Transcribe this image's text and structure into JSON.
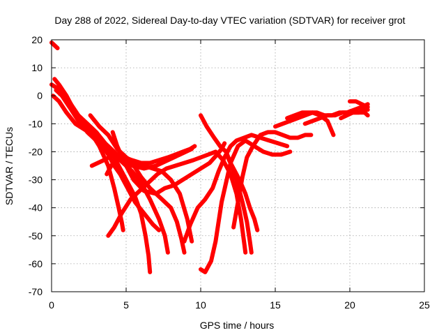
{
  "chart_data": {
    "type": "line",
    "title": "Day 288 of 2022, Sidereal Day-to-day VTEC variation (SDTVAR) for receiver grot",
    "xlabel": "GPS time / hours",
    "ylabel": "SDTVAR / TECUs",
    "xlim": [
      0,
      25
    ],
    "ylim": [
      -70,
      20
    ],
    "xticks": [
      "0",
      "5",
      "10",
      "15",
      "20",
      "25"
    ],
    "yticks": [
      "20",
      "10",
      "0",
      "-10",
      "-20",
      "-30",
      "-40",
      "-50",
      "-60",
      "-70"
    ],
    "grid": true,
    "marker": "plus",
    "color": "#ff0000",
    "series": [
      {
        "x": [
          0.0,
          0.4
        ],
        "y": [
          19,
          17
        ]
      },
      {
        "x": [
          0.0,
          0.3,
          0.7,
          1.2,
          1.8,
          2.5,
          3.2,
          3.8,
          4.2,
          4.5,
          4.7,
          4.8
        ],
        "y": [
          4,
          3,
          0,
          -4,
          -8,
          -12,
          -18,
          -25,
          -33,
          -40,
          -45,
          -48
        ]
      },
      {
        "x": [
          0.2,
          0.5,
          1.0,
          1.6,
          2.3,
          3.0,
          3.8,
          4.6,
          5.4,
          6.2,
          7.0,
          7.8,
          8.6,
          9.4
        ],
        "y": [
          6,
          4,
          0,
          -6,
          -10,
          -14,
          -18,
          -22,
          -25,
          -26,
          -25,
          -23,
          -21,
          -19
        ]
      },
      {
        "x": [
          0.3,
          0.7,
          1.2,
          1.8,
          2.4,
          3.0,
          3.6,
          4.2,
          4.8,
          5.4,
          6.0,
          6.6,
          7.2,
          7.6,
          7.8
        ],
        "y": [
          2,
          0,
          -4,
          -9,
          -13,
          -16,
          -18,
          -21,
          -24,
          -27,
          -31,
          -37,
          -44,
          -50,
          -56
        ]
      },
      {
        "x": [
          0.1,
          0.5,
          1.0,
          1.6,
          2.2,
          2.8,
          3.3,
          3.8,
          4.2,
          4.6,
          5.0,
          5.6,
          6.2,
          6.8,
          7.2
        ],
        "y": [
          0,
          -2,
          -6,
          -10,
          -12,
          -14,
          -17,
          -21,
          -25,
          -28,
          -32,
          -38,
          -42,
          -46,
          -48
        ]
      },
      {
        "x": [
          0.4,
          0.8,
          1.3,
          1.8,
          2.4,
          3.0,
          3.6,
          4.2,
          4.7,
          5.2,
          5.6,
          6.0,
          6.3,
          6.5,
          6.6
        ],
        "y": [
          3,
          1,
          -3,
          -7,
          -10,
          -13,
          -17,
          -22,
          -27,
          -32,
          -36,
          -42,
          -50,
          -57,
          -63
        ]
      },
      {
        "x": [
          2.6,
          3.2,
          3.8,
          4.4,
          5.0,
          5.6,
          6.2,
          6.8,
          7.4,
          8.0,
          8.6,
          9.1,
          9.4
        ],
        "y": [
          -7,
          -11,
          -14,
          -19,
          -22,
          -24,
          -25,
          -26,
          -27,
          -30,
          -35,
          -44,
          -52
        ]
      },
      {
        "x": [
          2.7,
          3.5,
          4.2,
          4.8,
          5.4,
          6.0,
          6.6,
          7.4,
          8.0,
          8.4,
          8.7,
          8.9
        ],
        "y": [
          -25,
          -23,
          -21,
          -21,
          -24,
          -29,
          -33,
          -37,
          -40,
          -45,
          -51,
          -56
        ]
      },
      {
        "x": [
          4.1,
          4.4,
          4.9,
          5.5,
          6.2,
          7.0,
          7.6,
          8.2,
          8.8,
          9.4,
          10.0,
          10.6,
          11.1,
          11.4,
          11.6
        ],
        "y": [
          -13,
          -18,
          -24,
          -30,
          -34,
          -35,
          -33,
          -32,
          -30,
          -28,
          -26,
          -24,
          -21,
          -19,
          -17
        ]
      },
      {
        "x": [
          3.7,
          4.0,
          4.4,
          4.9,
          5.4,
          6.0,
          6.6,
          7.2,
          7.8,
          8.3,
          8.8,
          9.3,
          9.6
        ],
        "y": [
          -28,
          -25,
          -22,
          -22,
          -23,
          -24,
          -24,
          -23,
          -22,
          -21,
          -20,
          -19,
          -18
        ]
      },
      {
        "x": [
          3.8,
          4.2,
          4.7,
          5.3,
          5.9,
          6.5,
          7.1,
          7.7,
          8.3,
          8.9,
          9.5,
          10.0,
          10.5,
          11.0,
          11.5,
          12.0,
          12.4,
          12.7,
          12.9,
          13.0
        ],
        "y": [
          -50,
          -47,
          -42,
          -37,
          -34,
          -31,
          -28,
          -26,
          -25,
          -24,
          -23,
          -22,
          -21,
          -20,
          -23,
          -28,
          -35,
          -44,
          -52,
          -56
        ]
      },
      {
        "x": [
          10.0,
          10.4,
          10.9,
          11.3,
          11.7,
          12.0,
          12.4,
          12.8,
          13.1,
          13.3,
          13.4
        ],
        "y": [
          -7,
          -11,
          -15,
          -18,
          -20,
          -24,
          -30,
          -38,
          -45,
          -52,
          -56
        ]
      },
      {
        "x": [
          10.0,
          10.3,
          10.7,
          11.0,
          11.2,
          11.4,
          11.7,
          12.0,
          12.5,
          13.0,
          13.6,
          14.2,
          14.8,
          15.4,
          16.0
        ],
        "y": [
          -62,
          -63,
          -59,
          -52,
          -45,
          -38,
          -31,
          -24,
          -18,
          -16,
          -18,
          -20,
          -21,
          -21,
          -20
        ]
      },
      {
        "x": [
          8.9,
          9.3,
          9.8,
          10.3,
          10.8,
          11.2,
          11.6,
          12.0,
          12.4,
          12.9,
          13.4,
          14.0,
          14.6,
          15.2,
          15.8
        ],
        "y": [
          -52,
          -46,
          -40,
          -37,
          -33,
          -27,
          -22,
          -18,
          -16,
          -15,
          -14,
          -15,
          -16,
          -17,
          -18
        ]
      },
      {
        "x": [
          12.2,
          12.5,
          12.8,
          13.1,
          13.5,
          14.0,
          14.5,
          15.0,
          15.5,
          16.0,
          16.5,
          17.0,
          17.4
        ],
        "y": [
          -47,
          -38,
          -29,
          -22,
          -18,
          -14,
          -13,
          -13,
          -14,
          -15,
          -15,
          -14,
          -14
        ]
      },
      {
        "x": [
          11.7,
          11.9,
          12.2,
          12.6,
          13.0,
          13.3,
          13.6,
          13.8
        ],
        "y": [
          -20,
          -23,
          -26,
          -30,
          -35,
          -40,
          -44,
          -48
        ]
      },
      {
        "x": [
          15.0,
          15.5,
          16.0,
          16.5,
          17.0,
          17.5,
          18.0,
          18.5,
          18.9
        ],
        "y": [
          -11,
          -10,
          -9,
          -8,
          -7,
          -6,
          -7,
          -9,
          -14
        ]
      },
      {
        "x": [
          15.8,
          16.3,
          16.8,
          17.3,
          17.8,
          18.3,
          18.8,
          19.3,
          19.8,
          20.3,
          20.8,
          21.2
        ],
        "y": [
          -8,
          -7,
          -6,
          -6,
          -6,
          -7,
          -7,
          -6,
          -6,
          -5,
          -4,
          -3
        ]
      },
      {
        "x": [
          17.0,
          17.5,
          18.0,
          18.5,
          19.0,
          19.5,
          20.0,
          20.5,
          21.0,
          21.2
        ],
        "y": [
          -10,
          -9,
          -8,
          -7,
          -7,
          -6,
          -6,
          -6,
          -6,
          -7
        ]
      },
      {
        "x": [
          19.4,
          19.8,
          20.2,
          20.6,
          21.0,
          21.2
        ],
        "y": [
          -8,
          -7,
          -6,
          -6,
          -5,
          -5
        ]
      },
      {
        "x": [
          20.0,
          20.4,
          20.8,
          21.2
        ],
        "y": [
          -2,
          -2,
          -3,
          -4
        ]
      }
    ]
  }
}
